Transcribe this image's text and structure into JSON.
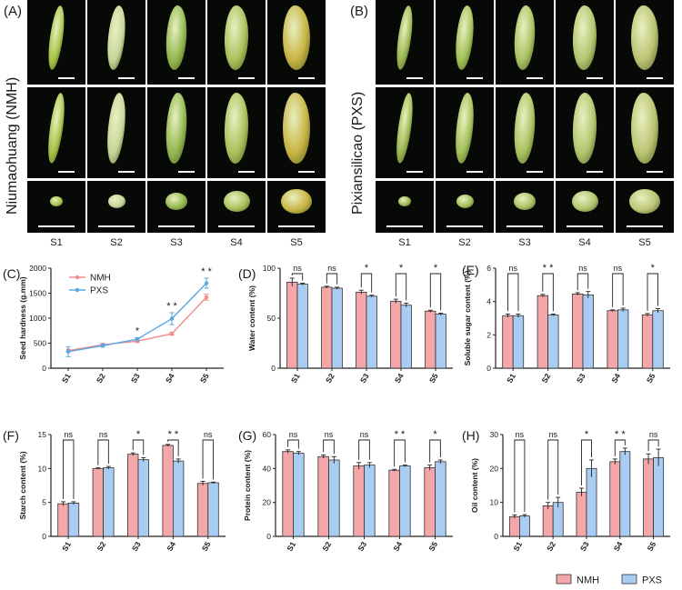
{
  "panels": {
    "A": {
      "label": "(A)",
      "title": "Niumaohuang (NMH)"
    },
    "B": {
      "label": "(B)",
      "title": "Pixiansilicao (PXS)"
    }
  },
  "stages": [
    "S1",
    "S2",
    "S3",
    "S4",
    "S5"
  ],
  "colors": {
    "NMH": "#f4a7a9",
    "PXS": "#a9cdf2",
    "NMH_line": "#f08c8c",
    "PXS_line": "#5aa8e0"
  },
  "chart_data": [
    {
      "id": "C",
      "label": "(C)",
      "type": "line",
      "ylabel": "Seed hardness (g.mm)",
      "categories": [
        "S1",
        "S2",
        "S3",
        "S4",
        "S5"
      ],
      "ylim": [
        0,
        2000
      ],
      "yticks": [
        0,
        500,
        1000,
        1500,
        2000
      ],
      "series": [
        {
          "name": "NMH",
          "values": [
            350,
            470,
            540,
            690,
            1420
          ],
          "errors": [
            30,
            25,
            25,
            30,
            60
          ]
        },
        {
          "name": "PXS",
          "values": [
            330,
            450,
            580,
            990,
            1700
          ],
          "errors": [
            100,
            30,
            30,
            120,
            100
          ]
        }
      ],
      "significance": [
        "",
        "",
        "*",
        "* *",
        "* *"
      ]
    },
    {
      "id": "D",
      "label": "(D)",
      "type": "bar",
      "ylabel": "Water content (%)",
      "categories": [
        "S1",
        "S2",
        "S3",
        "S4",
        "S5"
      ],
      "ylim": [
        0,
        100
      ],
      "yticks": [
        0,
        50,
        100
      ],
      "series": [
        {
          "name": "NMH",
          "values": [
            86,
            81,
            76,
            67,
            57
          ],
          "errors": [
            4,
            1,
            2,
            2,
            1
          ]
        },
        {
          "name": "PXS",
          "values": [
            84,
            80,
            72,
            63,
            54
          ],
          "errors": [
            1,
            1,
            1,
            2,
            1
          ]
        }
      ],
      "significance": [
        "ns",
        "ns",
        "*",
        "*",
        "*"
      ]
    },
    {
      "id": "E",
      "label": "(E)",
      "type": "bar",
      "ylabel": "Soluble sugar content (%)",
      "categories": [
        "S1",
        "S2",
        "S3",
        "S4",
        "S5"
      ],
      "ylim": [
        0,
        6
      ],
      "yticks": [
        0,
        2,
        4,
        6
      ],
      "series": [
        {
          "name": "NMH",
          "values": [
            3.15,
            4.35,
            4.45,
            3.45,
            3.2
          ],
          "errors": [
            0.1,
            0.08,
            0.08,
            0.05,
            0.08
          ]
        },
        {
          "name": "PXS",
          "values": [
            3.15,
            3.2,
            4.4,
            3.5,
            3.45
          ],
          "errors": [
            0.1,
            0.05,
            0.2,
            0.1,
            0.12
          ]
        }
      ],
      "significance": [
        "ns",
        "* *",
        "ns",
        "ns",
        "*"
      ]
    },
    {
      "id": "F",
      "label": "(F)",
      "type": "bar",
      "ylabel": "Starch content (%)",
      "categories": [
        "S1",
        "S2",
        "S3",
        "S4",
        "S5"
      ],
      "ylim": [
        0,
        15
      ],
      "yticks": [
        0,
        5,
        10,
        15
      ],
      "series": [
        {
          "name": "NMH",
          "values": [
            4.8,
            10.0,
            12.1,
            13.4,
            7.8
          ],
          "errors": [
            0.3,
            0.1,
            0.2,
            0.15,
            0.3
          ]
        },
        {
          "name": "PXS",
          "values": [
            4.9,
            10.1,
            11.3,
            11.1,
            7.9
          ],
          "errors": [
            0.2,
            0.2,
            0.3,
            0.3,
            0.1
          ]
        }
      ],
      "significance": [
        "ns",
        "ns",
        "*",
        "* *",
        "ns"
      ]
    },
    {
      "id": "G",
      "label": "(G)",
      "type": "bar",
      "ylabel": "Protein content (%)",
      "categories": [
        "S1",
        "S2",
        "S3",
        "S4",
        "S5"
      ],
      "ylim": [
        0,
        60
      ],
      "yticks": [
        0,
        20,
        40,
        60
      ],
      "series": [
        {
          "name": "NMH",
          "values": [
            50,
            47,
            41.5,
            39,
            40.5
          ],
          "errors": [
            1,
            1,
            2,
            0.5,
            1.5
          ]
        },
        {
          "name": "PXS",
          "values": [
            49,
            45,
            42,
            41.5,
            44
          ],
          "errors": [
            1,
            2,
            1.5,
            0.5,
            1
          ]
        }
      ],
      "significance": [
        "ns",
        "ns",
        "ns",
        "* *",
        "*"
      ]
    },
    {
      "id": "H",
      "label": "(H)",
      "type": "bar",
      "ylabel": "Oil content (%)",
      "categories": [
        "S1",
        "S2",
        "S3",
        "S4",
        "S5"
      ],
      "ylim": [
        0,
        30
      ],
      "yticks": [
        0,
        10,
        20,
        30
      ],
      "series": [
        {
          "name": "NMH",
          "values": [
            5.8,
            9.0,
            13.0,
            22.0,
            22.8
          ],
          "errors": [
            0.5,
            1.0,
            1.2,
            0.8,
            1.5
          ]
        },
        {
          "name": "PXS",
          "values": [
            6.0,
            10.0,
            20.0,
            25.0,
            23.2
          ],
          "errors": [
            0.4,
            1.5,
            2.5,
            1.0,
            2.5
          ]
        }
      ],
      "significance": [
        "ns",
        "ns",
        "*",
        "* *",
        "ns"
      ]
    }
  ],
  "legend": {
    "items": [
      "NMH",
      "PXS"
    ]
  }
}
